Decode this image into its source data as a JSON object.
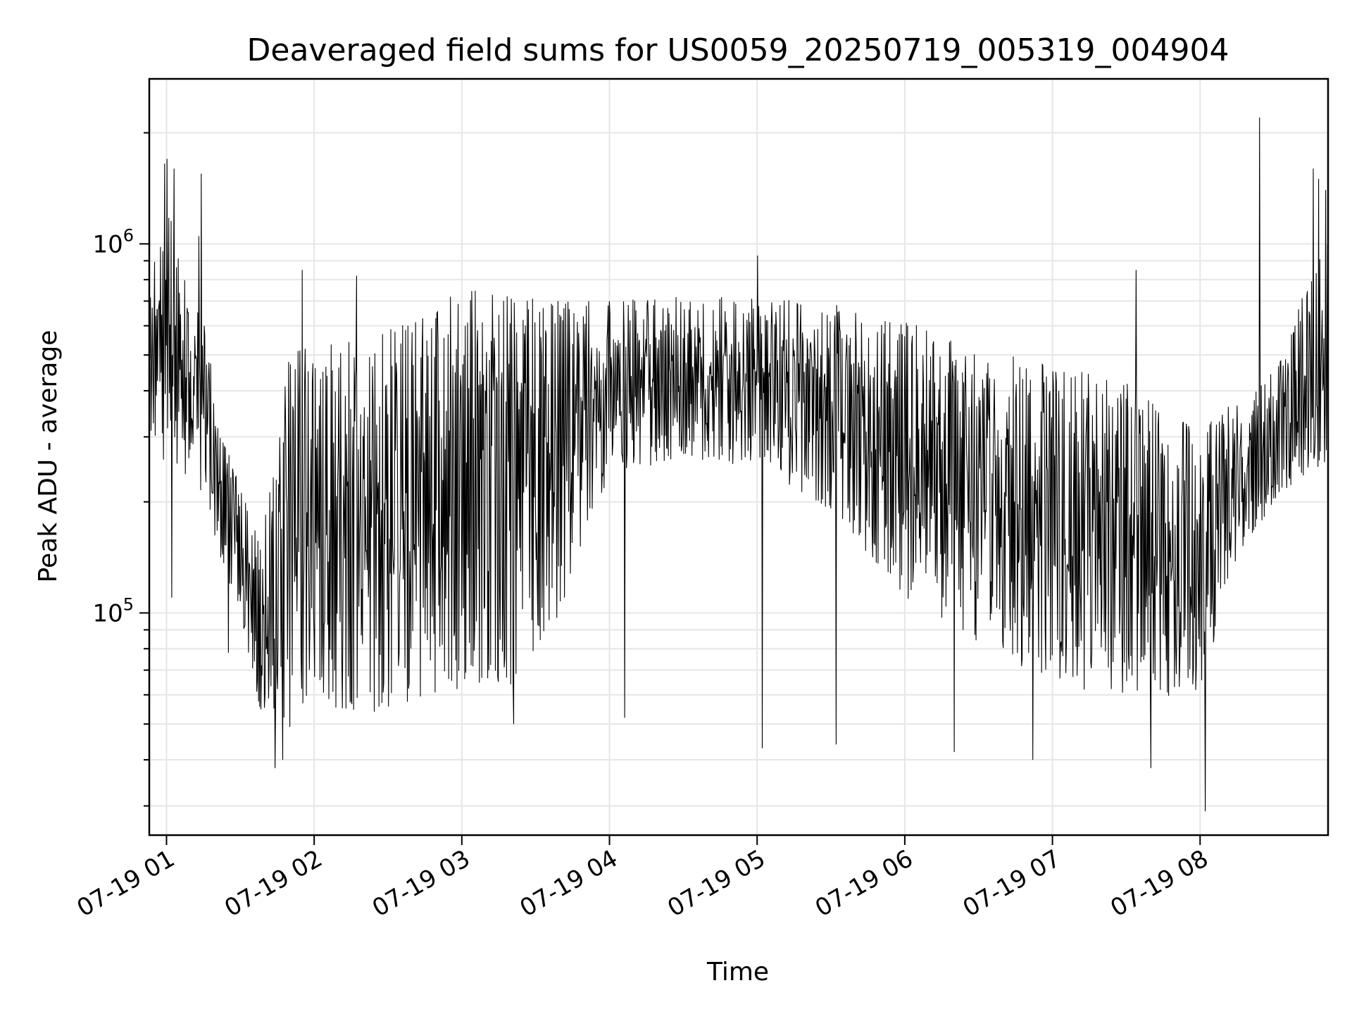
{
  "chart_data": {
    "type": "line",
    "title": "Deaveraged field sums for US0059_20250719_005319_004904",
    "xlabel": "Time",
    "ylabel": "Peak ADU - average",
    "x_scale": "time",
    "y_scale": "log",
    "xlim": [
      "2025-07-19 00:53",
      "2025-07-19 08:52"
    ],
    "ylim": [
      25000,
      2800000
    ],
    "x_ticks": [
      {
        "value": "2025-07-19 01:00",
        "label": "07-19 01"
      },
      {
        "value": "2025-07-19 02:00",
        "label": "07-19 02"
      },
      {
        "value": "2025-07-19 03:00",
        "label": "07-19 03"
      },
      {
        "value": "2025-07-19 04:00",
        "label": "07-19 04"
      },
      {
        "value": "2025-07-19 05:00",
        "label": "07-19 05"
      },
      {
        "value": "2025-07-19 06:00",
        "label": "07-19 06"
      },
      {
        "value": "2025-07-19 07:00",
        "label": "07-19 07"
      },
      {
        "value": "2025-07-19 08:00",
        "label": "07-19 08"
      }
    ],
    "y_major_ticks": [
      {
        "value": 100000,
        "base": "10",
        "exp": "5"
      },
      {
        "value": 1000000,
        "base": "10",
        "exp": "6"
      }
    ],
    "y_minor_ticks": [
      30000,
      40000,
      50000,
      60000,
      70000,
      80000,
      90000,
      200000,
      300000,
      400000,
      500000,
      600000,
      700000,
      800000,
      900000,
      2000000
    ],
    "grid": true,
    "legend": "none",
    "line_color": "#000000",
    "envelope": [
      {
        "t": "2025-07-19 00:53",
        "low": 300000,
        "high": 800000
      },
      {
        "t": "2025-07-19 01:00",
        "low": 250000,
        "high": 1300000
      },
      {
        "t": "2025-07-19 01:10",
        "low": 230000,
        "high": 700000
      },
      {
        "t": "2025-07-19 01:16",
        "low": 200000,
        "high": 600000
      },
      {
        "t": "2025-07-19 01:22",
        "low": 140000,
        "high": 300000
      },
      {
        "t": "2025-07-19 01:30",
        "low": 100000,
        "high": 230000
      },
      {
        "t": "2025-07-19 01:38",
        "low": 55000,
        "high": 150000
      },
      {
        "t": "2025-07-19 01:50",
        "low": 48000,
        "high": 500000
      },
      {
        "t": "2025-07-19 02:00",
        "low": 58000,
        "high": 550000
      },
      {
        "t": "2025-07-19 02:20",
        "low": 52000,
        "high": 550000
      },
      {
        "t": "2025-07-19 02:40",
        "low": 58000,
        "high": 620000
      },
      {
        "t": "2025-07-19 03:00",
        "low": 62000,
        "high": 760000
      },
      {
        "t": "2025-07-19 03:20",
        "low": 64000,
        "high": 720000
      },
      {
        "t": "2025-07-19 03:40",
        "low": 100000,
        "high": 700000
      },
      {
        "t": "2025-07-19 04:00",
        "low": 240000,
        "high": 700000
      },
      {
        "t": "2025-07-19 04:30",
        "low": 260000,
        "high": 720000
      },
      {
        "t": "2025-07-19 05:00",
        "low": 250000,
        "high": 720000
      },
      {
        "t": "2025-07-19 05:30",
        "low": 190000,
        "high": 690000
      },
      {
        "t": "2025-07-19 06:00",
        "low": 110000,
        "high": 620000
      },
      {
        "t": "2025-07-19 06:30",
        "low": 80000,
        "high": 520000
      },
      {
        "t": "2025-07-19 07:00",
        "low": 65000,
        "high": 470000
      },
      {
        "t": "2025-07-19 07:30",
        "low": 58000,
        "high": 420000
      },
      {
        "t": "2025-07-19 08:00",
        "low": 60000,
        "high": 320000
      },
      {
        "t": "2025-07-19 08:15",
        "low": 140000,
        "high": 380000
      },
      {
        "t": "2025-07-19 08:30",
        "low": 200000,
        "high": 450000
      },
      {
        "t": "2025-07-19 08:52",
        "low": 260000,
        "high": 1100000
      }
    ],
    "points_per_hour": 250,
    "spikes": [
      {
        "t": "2025-07-19 00:59",
        "value": 1650000
      },
      {
        "t": "2025-07-19 01:00",
        "value": 1700000
      },
      {
        "t": "2025-07-19 01:03",
        "value": 1600000
      },
      {
        "t": "2025-07-19 01:14",
        "value": 1550000
      },
      {
        "t": "2025-07-19 01:13",
        "value": 1050000
      },
      {
        "t": "2025-07-19 01:02",
        "value": 110000
      },
      {
        "t": "2025-07-19 01:25",
        "value": 78000
      },
      {
        "t": "2025-07-19 01:44",
        "value": 38000
      },
      {
        "t": "2025-07-19 01:47",
        "value": 40000
      },
      {
        "t": "2025-07-19 01:55",
        "value": 850000
      },
      {
        "t": "2025-07-19 02:17",
        "value": 820000
      },
      {
        "t": "2025-07-19 03:21",
        "value": 50000
      },
      {
        "t": "2025-07-19 04:06",
        "value": 52000
      },
      {
        "t": "2025-07-19 05:00",
        "value": 930000
      },
      {
        "t": "2025-07-19 05:02",
        "value": 43000
      },
      {
        "t": "2025-07-19 05:32",
        "value": 44000
      },
      {
        "t": "2025-07-19 06:20",
        "value": 42000
      },
      {
        "t": "2025-07-19 06:52",
        "value": 40000
      },
      {
        "t": "2025-07-19 07:34",
        "value": 850000
      },
      {
        "t": "2025-07-19 07:40",
        "value": 38000
      },
      {
        "t": "2025-07-19 08:02",
        "value": 29000
      },
      {
        "t": "2025-07-19 08:24",
        "value": 2200000
      },
      {
        "t": "2025-07-19 08:46",
        "value": 1600000
      },
      {
        "t": "2025-07-19 08:48",
        "value": 1500000
      },
      {
        "t": "2025-07-19 08:51",
        "value": 1400000
      }
    ]
  }
}
